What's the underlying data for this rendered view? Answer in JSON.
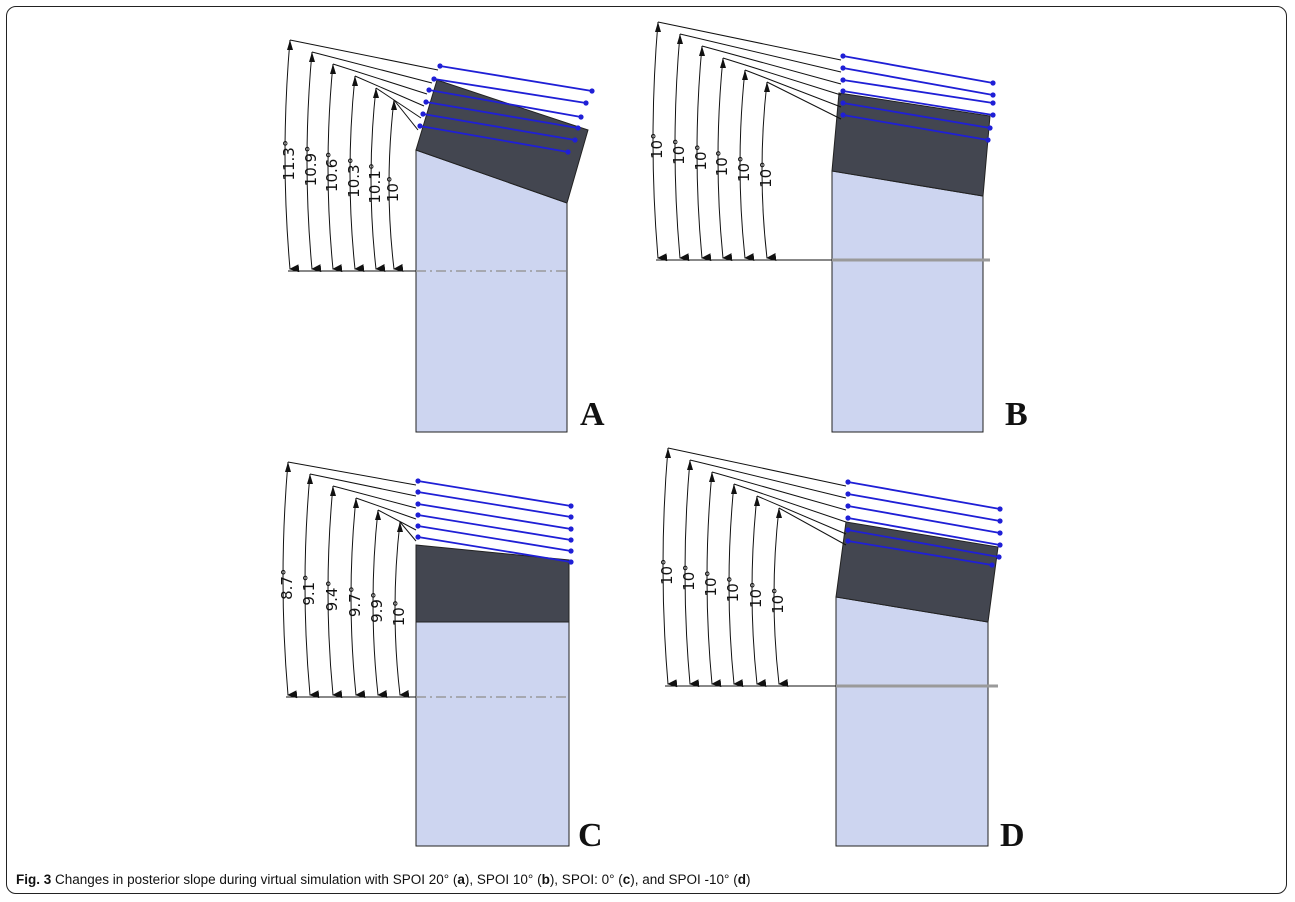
{
  "figure": {
    "caption": {
      "label": "Fig. 3",
      "text_1": " Changes in posterior slope during virtual simulation with SPOI 20° (",
      "a": "a",
      "text_2": "), SPOI 10° (",
      "b": "b",
      "text_3": "), SPOI: 0° (",
      "c": "c",
      "text_4": "), and SPOI -10° (",
      "d": "d",
      "text_5": ")"
    },
    "panels": [
      {
        "letter": "A",
        "angles": [
          "11.3°",
          "10.9°",
          "10.6°",
          "10.3°",
          "10.1°",
          "10°"
        ]
      },
      {
        "letter": "B",
        "angles": [
          "10°",
          "10°",
          "10°",
          "10°",
          "10°",
          "10°"
        ]
      },
      {
        "letter": "C",
        "angles": [
          "8.7°",
          "9.1°",
          "9.4°",
          "9.7°",
          "9.9°",
          "10°"
        ]
      },
      {
        "letter": "D",
        "angles": [
          "10°",
          "10°",
          "10°",
          "10°",
          "10°",
          "10°"
        ]
      }
    ],
    "colors": {
      "bone": "#cdd5f0",
      "spacer": "#434650",
      "slope_line": "#1f1fd6",
      "dimension": "#111111",
      "axis_line": "#9a9a9a"
    }
  }
}
